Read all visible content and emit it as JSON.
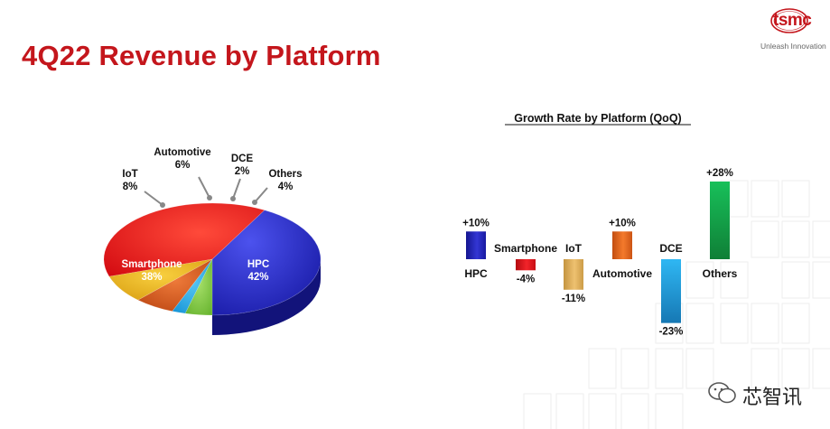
{
  "slide": {
    "title": "4Q22 Revenue by Platform",
    "logo_text": "tsmc",
    "logo_tagline": "Unleash Innovation",
    "watermark_text": "芯智讯"
  },
  "colors": {
    "title": "#c4161c",
    "hpc": "#1f22b8",
    "smartphone": "#e3141b",
    "iot": "#e5ad16",
    "automotive": "#d9551b",
    "dce": "#18a6ea",
    "others": "#7ec83b",
    "bar_iot": "#e2b15c",
    "bar_automotive": "#e9661d",
    "bar_dce": "#1ca6e6",
    "bar_others": "#1ab04d"
  },
  "chart_data": [
    {
      "type": "pie",
      "title": "",
      "categories": [
        "HPC",
        "Smartphone",
        "IoT",
        "Automotive",
        "DCE",
        "Others"
      ],
      "values": [
        42,
        38,
        8,
        6,
        2,
        4
      ],
      "value_labels": [
        "42%",
        "38%",
        "8%",
        "6%",
        "2%",
        "4%"
      ],
      "three_d": true
    },
    {
      "type": "bar",
      "title": "Growth Rate by Platform (QoQ)",
      "categories": [
        "HPC",
        "Smartphone",
        "IoT",
        "Automotive",
        "DCE",
        "Others"
      ],
      "values": [
        10,
        -4,
        -11,
        10,
        -23,
        28
      ],
      "value_labels": [
        "+10%",
        "-4%",
        "-11%",
        "+10%",
        "-23%",
        "+28%"
      ],
      "ylim": [
        -25,
        30
      ],
      "unit": "%",
      "grid": false,
      "legend": "none"
    }
  ]
}
